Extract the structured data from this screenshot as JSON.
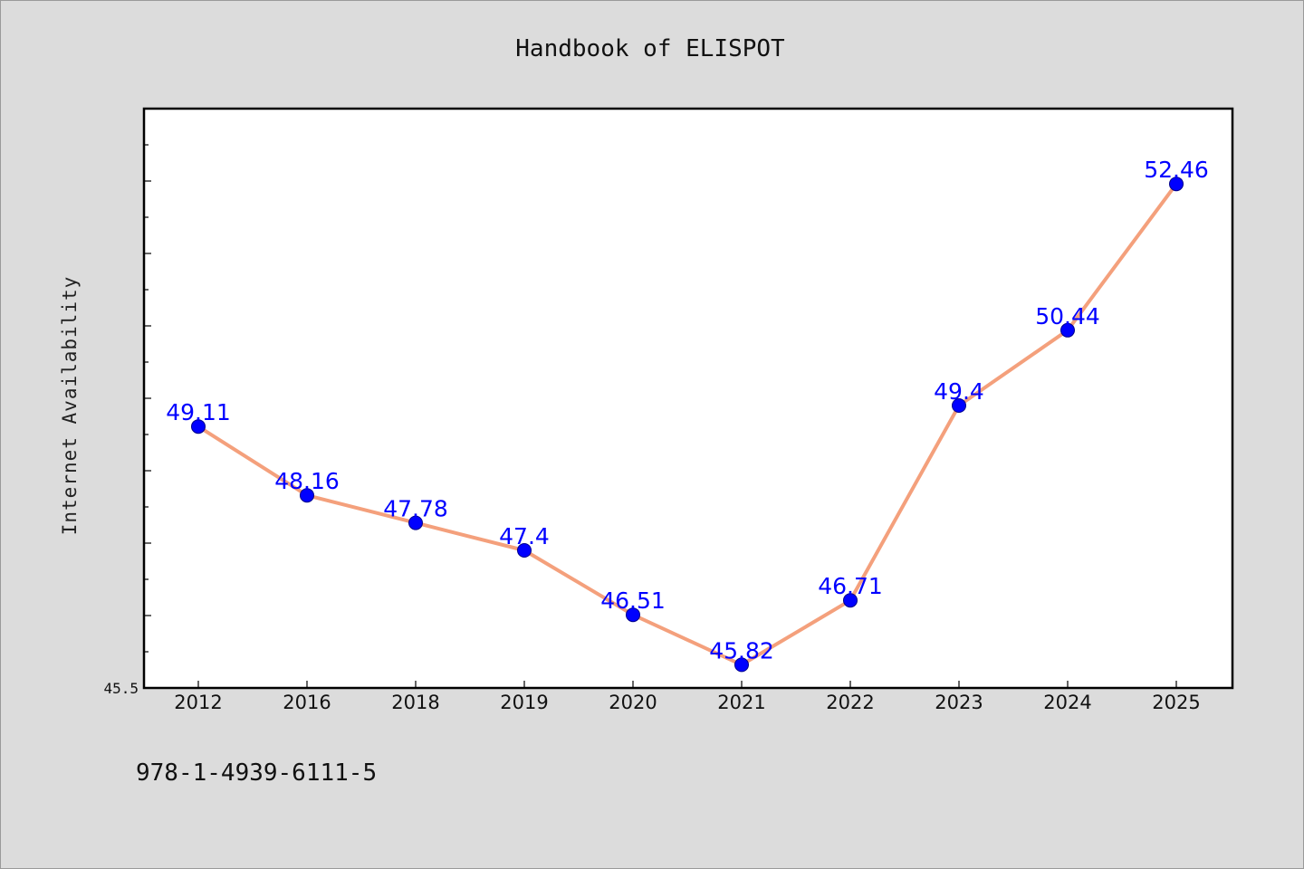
{
  "chart_data": {
    "type": "line",
    "title": "Handbook of ELISPOT",
    "xlabel": "",
    "ylabel": "Internet Availability",
    "categories": [
      "2012",
      "2016",
      "2018",
      "2019",
      "2020",
      "2021",
      "2022",
      "2023",
      "2024",
      "2025"
    ],
    "series": [
      {
        "values": [
          49.11,
          48.16,
          47.78,
          47.4,
          46.51,
          45.82,
          46.71,
          49.4,
          50.44,
          52.46
        ],
        "labels": [
          "49.11",
          "48.16",
          "47.78",
          "47.4",
          "46.51",
          "45.82",
          "46.71",
          "49.4",
          "50.44",
          "52.46"
        ]
      }
    ],
    "ylim": [
      45.5,
      53.5
    ],
    "ytick_labels": [
      "45.5"
    ],
    "grid": false,
    "legend": "none",
    "colors": {
      "line": "#f4a07c",
      "marker": "#0000ff",
      "data_label": "#0000ff",
      "plot_background": "#ffffff",
      "figure_background": "#dcdcdc"
    }
  },
  "footer": {
    "isbn": "978-1-4939-6111-5"
  }
}
